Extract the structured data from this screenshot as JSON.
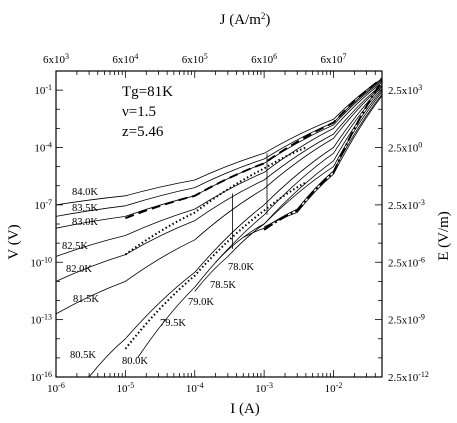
{
  "chart_data": {
    "type": "line",
    "xaxis": {
      "label": "I (A)",
      "scale": "log",
      "range": [
        1e-06,
        0.05
      ],
      "ticks": [
        {
          "value": 1e-06,
          "base": "10",
          "exp": "-6"
        },
        {
          "value": 1e-05,
          "base": "10",
          "exp": "-5"
        },
        {
          "value": 0.0001,
          "base": "10",
          "exp": "-4"
        },
        {
          "value": 0.001,
          "base": "10",
          "exp": "-3"
        },
        {
          "value": 0.01,
          "base": "10",
          "exp": "-2"
        }
      ]
    },
    "yaxis": {
      "label": "V (V)",
      "scale": "log",
      "range": [
        1e-16,
        1
      ],
      "ticks": [
        {
          "value": 0.1,
          "base": "10",
          "exp": "-1"
        },
        {
          "value": 0.0001,
          "base": "10",
          "exp": "-4"
        },
        {
          "value": 1e-07,
          "base": "10",
          "exp": "-7"
        },
        {
          "value": 1e-10,
          "base": "10",
          "exp": "-10"
        },
        {
          "value": 1e-13,
          "base": "10",
          "exp": "-13"
        },
        {
          "value": 1e-16,
          "base": "10",
          "exp": "-16"
        }
      ]
    },
    "x2axis": {
      "label": "J (A/m",
      "label_sup": "2",
      "label_end": ")",
      "ticks": [
        {
          "value": 6000.0,
          "mant": "6x10",
          "exp": "3"
        },
        {
          "value": 60000.0,
          "mant": "6x10",
          "exp": "4"
        },
        {
          "value": 600000.0,
          "mant": "6x10",
          "exp": "5"
        },
        {
          "value": 6000000.0,
          "mant": "6x10",
          "exp": "6"
        },
        {
          "value": 60000000.0,
          "mant": "6x10",
          "exp": "7"
        }
      ]
    },
    "y2axis": {
      "label": "E (V/m)",
      "ticks": [
        {
          "value": 2500,
          "mant": "2.5x10",
          "exp": "3"
        },
        {
          "value": 2.5,
          "mant": "2.5x10",
          "exp": "0"
        },
        {
          "value": 0.0025,
          "mant": "2.5x10",
          "exp": "-3"
        },
        {
          "value": 2.5e-06,
          "mant": "2.5x10",
          "exp": "-6"
        },
        {
          "value": 2.5e-09,
          "mant": "2.5x10",
          "exp": "-9"
        },
        {
          "value": 2.5e-12,
          "mant": "2.5x10",
          "exp": "-12"
        }
      ]
    },
    "annotations": [
      "Tg=81K",
      "ν=1.5",
      "z=5.46"
    ],
    "series": [
      {
        "name": "84.0K",
        "style": "solid",
        "x": [
          1e-06,
          1e-05,
          0.0001,
          0.001,
          0.01,
          0.05
        ],
        "y": [
          1e-07,
          3e-07,
          2e-06,
          5e-05,
          0.003,
          0.4
        ]
      },
      {
        "name": "83.5K",
        "style": "solid",
        "x": [
          1e-06,
          1e-05,
          0.0001,
          0.001,
          0.01,
          0.05
        ],
        "y": [
          2.5e-08,
          9e-08,
          8e-07,
          2.5e-05,
          0.002,
          0.35
        ]
      },
      {
        "name": "83.0K",
        "style": "solid",
        "x": [
          1e-06,
          1e-05,
          0.0001,
          0.001,
          0.01,
          0.05
        ],
        "y": [
          6e-09,
          2.5e-08,
          3e-07,
          1.5e-05,
          0.0015,
          0.3
        ]
      },
      {
        "name": "82.5K",
        "style": "solid",
        "x": [
          1e-06,
          1e-05,
          0.0001,
          0.001,
          0.01,
          0.05
        ],
        "y": [
          2e-10,
          2.5e-09,
          6e-08,
          5e-06,
          0.001,
          0.25
        ]
      },
      {
        "name": "82.0K",
        "style": "solid",
        "x": [
          1e-06,
          1e-05,
          0.0001,
          0.001,
          0.01,
          0.05
        ],
        "y": [
          1e-11,
          2.5e-10,
          1.5e-08,
          2e-06,
          0.0005,
          0.2
        ]
      },
      {
        "name": "81.5K",
        "style": "solid",
        "x": [
          1e-06,
          1e-05,
          0.0001,
          0.001,
          0.01,
          0.05
        ],
        "y": [
          2e-13,
          1e-11,
          1.5e-09,
          7e-07,
          0.0003,
          0.17
        ]
      },
      {
        "name": "80.5K",
        "style": "solid",
        "x": [
          3e-06,
          1e-05,
          0.0001,
          0.001,
          0.01,
          0.05
        ],
        "y": [
          1e-16,
          1e-14,
          3e-11,
          1e-07,
          0.0001,
          0.15
        ]
      },
      {
        "name": "80.0K",
        "style": "solid",
        "x": [
          1.5e-05,
          0.0001,
          0.001,
          0.01,
          0.05
        ],
        "y": [
          1e-15,
          5e-12,
          3e-08,
          5e-05,
          0.12
        ]
      },
      {
        "name": "79.5K",
        "style": "solid",
        "x": [
          0.0001,
          0.0003,
          0.001,
          0.01,
          0.05
        ],
        "y": [
          3e-12,
          2e-10,
          1e-08,
          2e-05,
          0.1
        ]
      },
      {
        "name": "79.0K",
        "style": "solid",
        "x": [
          0.0002,
          0.0005,
          0.001,
          0.01,
          0.05
        ],
        "y": [
          1e-10,
          2e-09,
          1e-08,
          1e-05,
          0.08
        ]
      },
      {
        "name": "78.5K",
        "style": "solid",
        "x": [
          0.0005,
          0.001,
          0.003,
          0.01,
          0.05
        ],
        "y": [
          2e-09,
          6e-09,
          6e-08,
          6e-06,
          0.06
        ]
      },
      {
        "name": "78.0K",
        "style": "solid",
        "x": [
          0.001,
          0.003,
          0.01,
          0.05
        ],
        "y": [
          7e-09,
          4e-08,
          4e-06,
          0.05
        ]
      },
      {
        "name": "",
        "style": "dashed",
        "x": [
          1e-05,
          0.0001,
          0.001,
          0.01,
          0.05
        ],
        "y": [
          2e-08,
          3e-07,
          1.5e-05,
          0.002,
          0.4
        ]
      },
      {
        "name": "",
        "style": "dotted",
        "x": [
          1e-05,
          0.0001,
          0.001,
          0.004
        ],
        "y": [
          2.5e-10,
          4e-08,
          8e-06,
          0.0001
        ]
      },
      {
        "name": "",
        "style": "dotted",
        "x": [
          1e-05,
          0.0001,
          0.001,
          0.004
        ],
        "y": [
          3e-15,
          2e-11,
          5e-08,
          1.5e-06
        ]
      },
      {
        "name": "",
        "style": "dashdot",
        "x": [
          0.001,
          0.003,
          0.01,
          0.05
        ],
        "y": [
          5e-09,
          5e-08,
          5e-06,
          0.3
        ]
      }
    ],
    "markers": [
      {
        "x": 0.00035,
        "y1": 5e-10,
        "y2": 4e-07
      },
      {
        "x": 0.0011,
        "y1": 3e-08,
        "y2": 5e-05
      }
    ],
    "legend": "none",
    "grid": false
  }
}
